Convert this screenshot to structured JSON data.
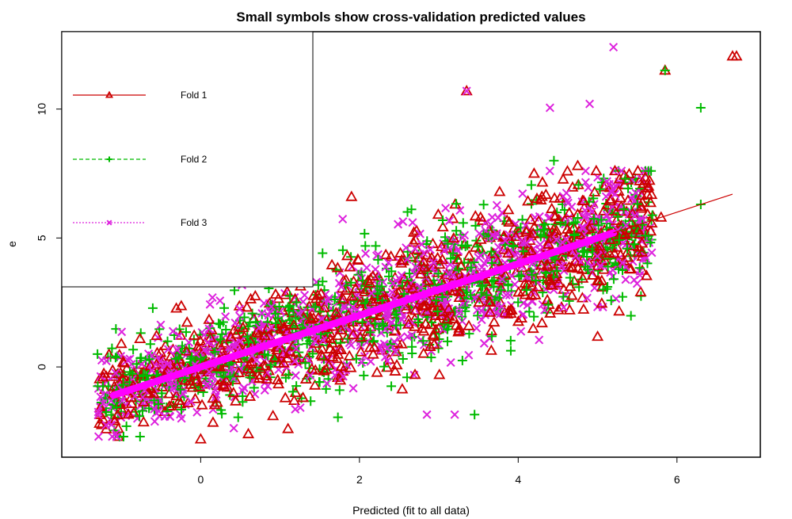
{
  "chart_data": {
    "type": "scatter",
    "title": "Small symbols show cross-validation predicted values",
    "xlabel": "Predicted (fit to all data)",
    "ylabel": "e",
    "xlim": [
      -1.75,
      7.05
    ],
    "ylim": [
      -3.5,
      13.0
    ],
    "x_ticks": [
      0,
      2,
      4,
      6
    ],
    "y_ticks": [
      0,
      5,
      10
    ],
    "grid": false,
    "legend_placement": "top-left",
    "series": [
      {
        "name": "Fold 1",
        "color": "#cc0000",
        "marker": "triangle",
        "line": "solid"
      },
      {
        "name": "Fold 2",
        "color": "#00bb00",
        "marker": "plus",
        "line": "dashed"
      },
      {
        "name": "Fold 3",
        "color": "#dd22dd",
        "marker": "x",
        "line": "dotted"
      }
    ],
    "fit_line": {
      "x": [
        -1.1,
        6.7
      ],
      "y": [
        -1.1,
        6.7
      ],
      "color": "#ff00ff"
    },
    "cloud": {
      "x_range": [
        -1.3,
        5.7
      ],
      "spread": 1.3
    },
    "outliers": [
      {
        "x": 3.35,
        "y": 10.7,
        "series": 0
      },
      {
        "x": 3.35,
        "y": 10.7,
        "series": 2
      },
      {
        "x": 5.2,
        "y": 12.4,
        "series": 2
      },
      {
        "x": 5.85,
        "y": 11.5,
        "series": 0
      },
      {
        "x": 5.85,
        "y": 11.5,
        "series": 1
      },
      {
        "x": 6.7,
        "y": 12.05,
        "series": 0
      },
      {
        "x": 6.75,
        "y": 12.05,
        "series": 0
      },
      {
        "x": 6.3,
        "y": 10.05,
        "series": 1
      },
      {
        "x": 4.4,
        "y": 10.05,
        "series": 2
      },
      {
        "x": 4.9,
        "y": 10.2,
        "series": 2
      },
      {
        "x": 2.85,
        "y": -1.85,
        "series": 2
      },
      {
        "x": 3.2,
        "y": -1.85,
        "series": 2
      },
      {
        "x": 3.45,
        "y": -1.85,
        "series": 1
      },
      {
        "x": 0,
        "y": -2.8,
        "series": 0
      },
      {
        "x": 0.6,
        "y": -2.6,
        "series": 0
      },
      {
        "x": 1.1,
        "y": -2.4,
        "series": 0
      },
      {
        "x": 1.9,
        "y": 6.6,
        "series": 0
      },
      {
        "x": 4.45,
        "y": 8.0,
        "series": 1
      },
      {
        "x": 4.2,
        "y": 7.5,
        "series": 0
      },
      {
        "x": 4.75,
        "y": 7.8,
        "series": 0
      },
      {
        "x": 5.6,
        "y": 7.35,
        "series": 0
      },
      {
        "x": 5.35,
        "y": 7.3,
        "series": 1
      },
      {
        "x": 5.8,
        "y": 5.8,
        "series": 0
      },
      {
        "x": 6.3,
        "y": 6.3,
        "series": 1
      },
      {
        "x": 2.7,
        "y": -0.3,
        "series": 0
      },
      {
        "x": 1.75,
        "y": -0.9,
        "series": 1
      },
      {
        "x": -1.0,
        "y": 0.9,
        "series": 0
      },
      {
        "x": -1.3,
        "y": 0.5,
        "series": 1
      }
    ]
  }
}
